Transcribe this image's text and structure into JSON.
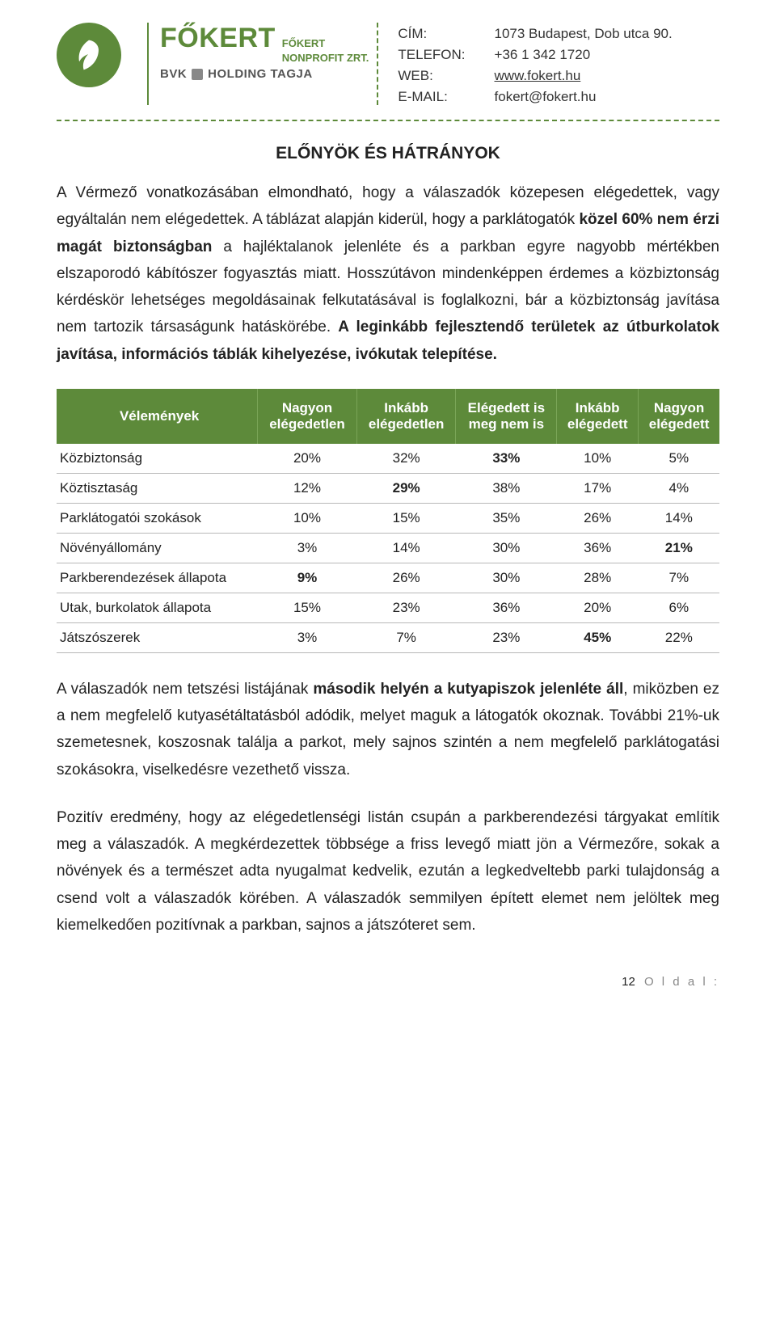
{
  "header": {
    "brand_main": "FŐKERT",
    "brand_sub1": "FŐKERT",
    "brand_sub2": "NONPROFIT ZRT.",
    "bvk_prefix": "BVK",
    "bvk_suffix": "HOLDING TAGJA",
    "contacts": {
      "cim_label": "CÍM:",
      "cim_value": "1073 Budapest, Dob utca 90.",
      "tel_label": "TELEFON:",
      "tel_value": "+36 1 342 1720",
      "web_label": "WEB:",
      "web_value": "www.fokert.hu",
      "email_label": "E-MAIL:",
      "email_value": "fokert@fokert.hu"
    }
  },
  "colors": {
    "brand_green": "#5d8a3a",
    "text": "#222222",
    "grid": "#b8b8b8",
    "background": "#ffffff",
    "footer_gray": "#888888"
  },
  "typography": {
    "heading_fontsize_pt": 16,
    "body_fontsize_pt": 14,
    "table_fontsize_pt": 13,
    "font_family": "Arial"
  },
  "section_title": "ELŐNYÖK ÉS HÁTRÁNYOK",
  "para1_part1": "A Vérmező vonatkozásában elmondható, hogy a válaszadók közepesen elégedettek, vagy egyáltalán nem elégedettek. A táblázat alapján kiderül, hogy a parklátogatók ",
  "para1_bold1": "közel 60% nem érzi magát biztonságban",
  "para1_part2": " a hajléktalanok jelenléte és a parkban egyre nagyobb mértékben elszaporodó kábítószer fogyasztás miatt. Hosszútávon mindenképpen érdemes a közbiztonság kérdéskör lehetséges megoldásainak felkutatásával is foglalkozni, bár a közbiztonság javítása nem tartozik társaságunk hatáskörébe. ",
  "para1_bold2": "A leginkább fejlesztendő területek az útburkolatok javítása, információs táblák kihelyezése, ivókutak telepítése.",
  "table": {
    "type": "table",
    "header_bg": "#5d8a3a",
    "header_fg": "#ffffff",
    "row_border_color": "#b8b8b8",
    "columns": [
      {
        "label_top": "Vélemények",
        "label_bottom": ""
      },
      {
        "label_top": "Nagyon",
        "label_bottom": "elégedetlen"
      },
      {
        "label_top": "Inkább",
        "label_bottom": "elégedetlen"
      },
      {
        "label_top": "Elégedett is",
        "label_bottom": "meg nem is"
      },
      {
        "label_top": "Inkább",
        "label_bottom": "elégedett"
      },
      {
        "label_top": "Nagyon",
        "label_bottom": "elégedett"
      }
    ],
    "rows": [
      {
        "label": "Közbiztonság",
        "cells": [
          "20%",
          "32%",
          "33%",
          "10%",
          "5%"
        ],
        "bold": [
          2
        ]
      },
      {
        "label": "Köztisztaság",
        "cells": [
          "12%",
          "29%",
          "38%",
          "17%",
          "4%"
        ],
        "bold": [
          1
        ]
      },
      {
        "label": "Parklátogatói szokások",
        "cells": [
          "10%",
          "15%",
          "35%",
          "26%",
          "14%"
        ],
        "bold": []
      },
      {
        "label": "Növényállomány",
        "cells": [
          "3%",
          "14%",
          "30%",
          "36%",
          "21%"
        ],
        "bold": [
          4
        ]
      },
      {
        "label": "Parkberendezések állapota",
        "cells": [
          "9%",
          "26%",
          "30%",
          "28%",
          "7%"
        ],
        "bold": [
          0
        ]
      },
      {
        "label": "Utak, burkolatok állapota",
        "cells": [
          "15%",
          "23%",
          "36%",
          "20%",
          "6%"
        ],
        "bold": []
      },
      {
        "label": "Játszószerek",
        "cells": [
          "3%",
          "7%",
          "23%",
          "45%",
          "22%"
        ],
        "bold": [
          3
        ]
      }
    ]
  },
  "para2_part1": "A válaszadók nem tetszési listájának ",
  "para2_bold1": "második helyén a kutyapiszok jelenléte áll",
  "para2_part2": ", miközben ez a nem megfelelő kutyasétáltatásból adódik, melyet maguk a látogatók okoznak. További 21%-uk szemetesnek, koszosnak találja a parkot, mely sajnos szintén a nem megfelelő parklátogatási szokásokra, viselkedésre vezethető vissza.",
  "para3": "Pozitív eredmény, hogy az elégedetlenségi listán csupán a parkberendezési tárgyakat említik meg a válaszadók. A megkérdezettek többsége a friss levegő miatt jön a Vérmezőre, sokak a növények és a természet adta nyugalmat kedvelik, ezután a legkedveltebb parki tulajdonság a csend volt a válaszadók körében. A válaszadók semmilyen épített elemet nem jelöltek meg kiemelkedően pozitívnak a parkban, sajnos a játszóteret sem.",
  "footer": {
    "page_number": "12",
    "page_label": "O l d a l :"
  }
}
